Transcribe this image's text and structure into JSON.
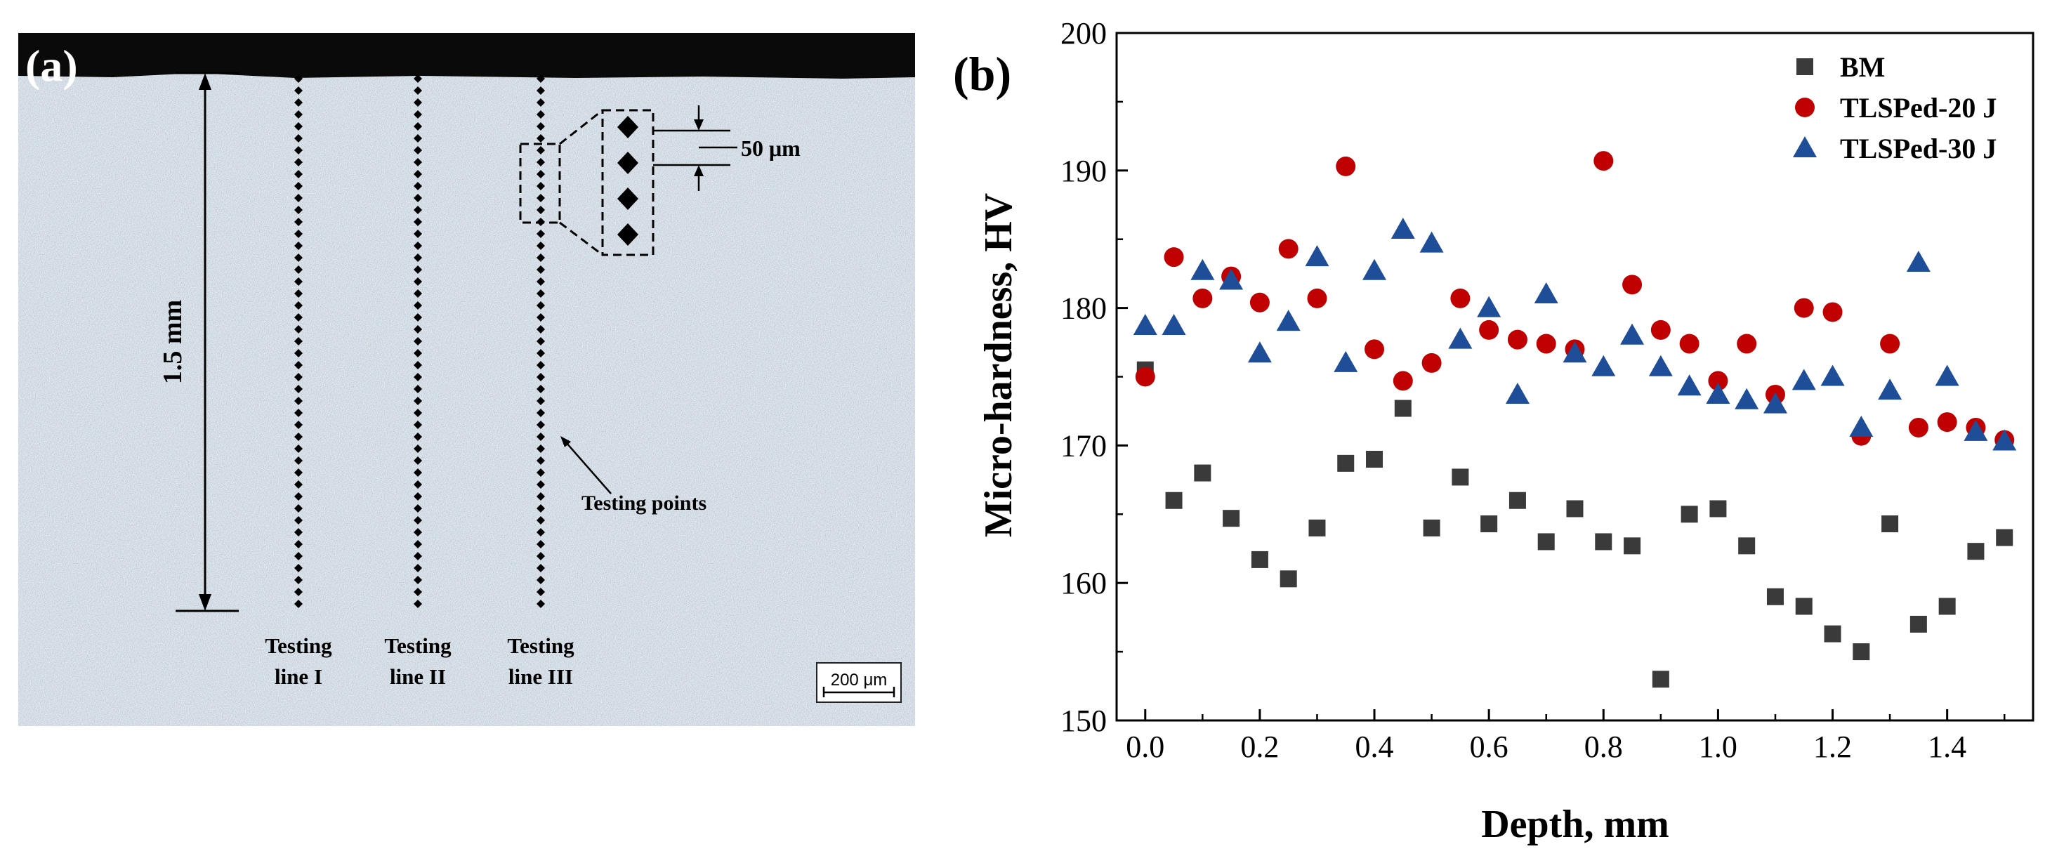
{
  "panel_a": {
    "label": "(a)",
    "depth_label": "1.5 mm",
    "inset_label": "50 μm",
    "points_label": "Testing points",
    "lines": [
      {
        "line1": "Testing",
        "line2": "line I"
      },
      {
        "line1": "Testing",
        "line2": "line II"
      },
      {
        "line1": "Testing",
        "line2": "line III"
      }
    ],
    "scale_bar": "200 μm",
    "colors": {
      "surface": "#0a0a0a",
      "micrograph": "#a9b7c3",
      "points": "#000000"
    }
  },
  "chart_data": {
    "type": "scatter",
    "panel_label": "(b)",
    "title": "",
    "xlabel": "Depth, mm",
    "ylabel": "Micro-hardness, HV",
    "xlim": [
      -0.05,
      1.55
    ],
    "ylim": [
      150,
      200
    ],
    "xticks": [
      0.0,
      0.2,
      0.4,
      0.6,
      0.8,
      1.0,
      1.2,
      1.4
    ],
    "xtick_labels": [
      "0.0",
      "0.2",
      "0.4",
      "0.6",
      "0.8",
      "1.0",
      "1.2",
      "1.4"
    ],
    "yticks": [
      150,
      160,
      170,
      180,
      190,
      200
    ],
    "ytick_labels": [
      "150",
      "160",
      "170",
      "180",
      "190",
      "200"
    ],
    "grid": false,
    "legend_position": "top-right",
    "x": [
      0.0,
      0.05,
      0.1,
      0.15,
      0.2,
      0.25,
      0.3,
      0.35,
      0.4,
      0.45,
      0.5,
      0.55,
      0.6,
      0.65,
      0.7,
      0.75,
      0.8,
      0.85,
      0.9,
      0.95,
      1.0,
      1.05,
      1.1,
      1.15,
      1.2,
      1.25,
      1.3,
      1.35,
      1.4,
      1.45,
      1.5
    ],
    "series": [
      {
        "name": "BM",
        "marker": "square",
        "color": "#3a3a3a",
        "values": [
          175.5,
          166.0,
          168.0,
          164.7,
          161.7,
          160.3,
          164.0,
          168.7,
          169.0,
          172.7,
          164.0,
          167.7,
          164.3,
          166.0,
          163.0,
          165.4,
          163.0,
          162.7,
          153.0,
          165.0,
          165.4,
          162.7,
          159.0,
          158.3,
          156.3,
          155.0,
          164.3,
          157.0,
          158.3,
          162.3,
          163.3
        ]
      },
      {
        "name": "TLSPed-20 J",
        "marker": "circle",
        "color": "#c00000",
        "values": [
          175.0,
          183.7,
          180.7,
          182.3,
          180.4,
          184.3,
          180.7,
          190.3,
          177.0,
          174.7,
          176.0,
          180.7,
          178.4,
          177.7,
          177.4,
          177.0,
          190.7,
          181.7,
          178.4,
          177.4,
          174.7,
          177.4,
          173.7,
          180.0,
          179.7,
          170.7,
          177.4,
          171.3,
          171.7,
          171.3,
          170.4
        ]
      },
      {
        "name": "TLSPed-30 J",
        "marker": "triangle",
        "color": "#1f4e99",
        "values": [
          178.7,
          178.7,
          182.7,
          182.0,
          176.7,
          179.0,
          183.7,
          176.0,
          182.7,
          185.7,
          184.7,
          177.7,
          180.0,
          173.7,
          181.0,
          176.7,
          175.7,
          178.0,
          175.7,
          174.3,
          173.7,
          173.3,
          173.0,
          174.7,
          175.0,
          171.3,
          174.0,
          183.3,
          175.0,
          171.0,
          170.3
        ]
      }
    ]
  }
}
